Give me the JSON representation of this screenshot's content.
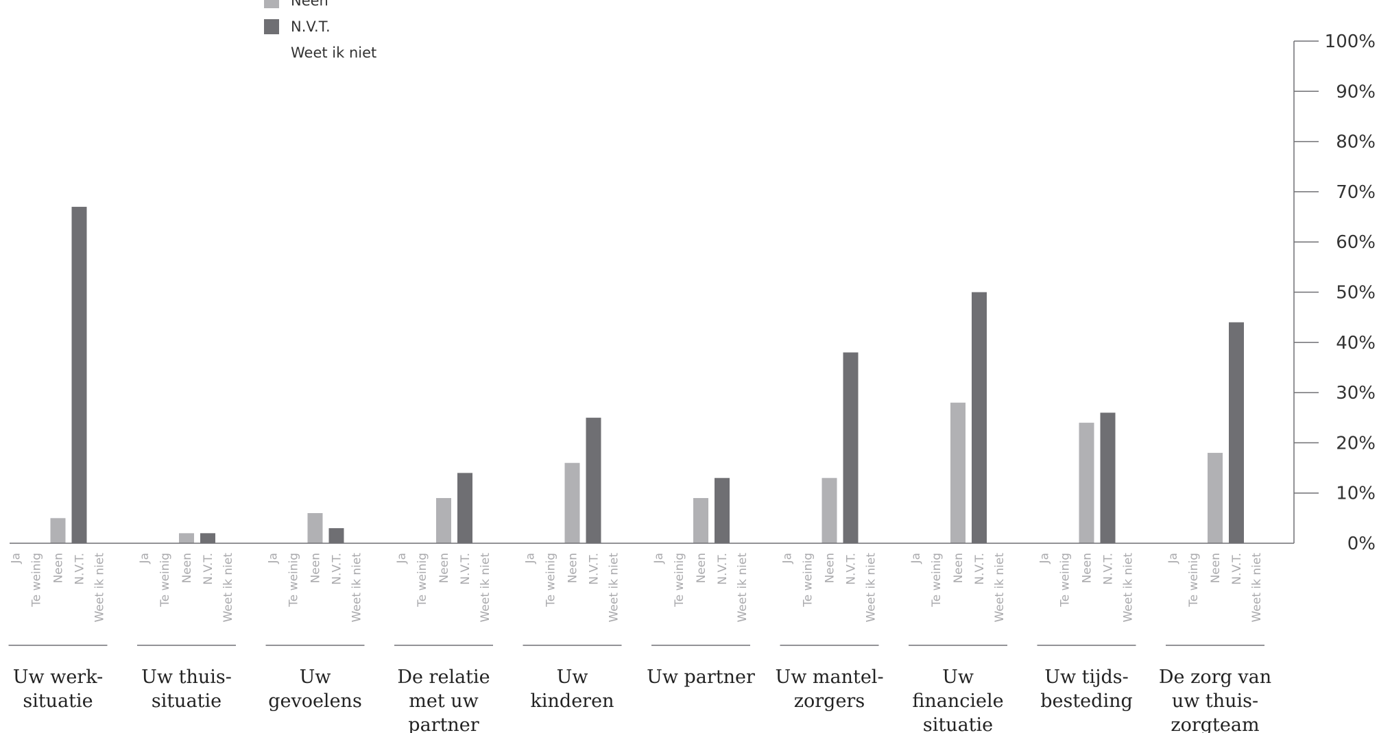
{
  "chart_data": {
    "type": "bar",
    "subcategories": [
      "Ja",
      "Te weinig",
      "Neen",
      "N.V.T.",
      "Weet ik niet"
    ],
    "groups": [
      {
        "label_lines": [
          "Uw werk-",
          "situatie"
        ]
      },
      {
        "label_lines": [
          "Uw thuis-",
          "situatie"
        ]
      },
      {
        "label_lines": [
          "Uw",
          "gevoelens"
        ]
      },
      {
        "label_lines": [
          "De relatie",
          "met uw",
          "partner"
        ]
      },
      {
        "label_lines": [
          "Uw",
          "kinderen"
        ]
      },
      {
        "label_lines": [
          "Uw partner"
        ]
      },
      {
        "label_lines": [
          "Uw mantel-",
          "zorgers"
        ]
      },
      {
        "label_lines": [
          "Uw",
          "financiele",
          "situatie"
        ]
      },
      {
        "label_lines": [
          "Uw tijds-",
          "besteding"
        ]
      },
      {
        "label_lines": [
          "De zorg van",
          "uw thuis-",
          "zorgteam"
        ]
      }
    ],
    "series": [
      {
        "name": "Neen",
        "color": "#b1b1b4",
        "values": [
          5,
          2,
          6,
          9,
          16,
          9,
          13,
          28,
          24,
          18
        ]
      },
      {
        "name": "N.V.T.",
        "color": "#6f6f73",
        "values": [
          67,
          2,
          3,
          14,
          25,
          13,
          38,
          50,
          26,
          44
        ]
      }
    ],
    "legend": [
      {
        "label": "Neen",
        "color": "#b1b1b4"
      },
      {
        "label": "N.V.T.",
        "color": "#6f6f73"
      },
      {
        "label": "Weet ik niet",
        "color": "#ffffff"
      }
    ],
    "y_ticks": [
      "0%",
      "10%",
      "20%",
      "30%",
      "40%",
      "50%",
      "60%",
      "70%",
      "80%",
      "90%",
      "100%"
    ],
    "ylim": [
      0,
      100
    ],
    "y_axis_position": "right",
    "legend_position": "top-left",
    "grid": false
  }
}
